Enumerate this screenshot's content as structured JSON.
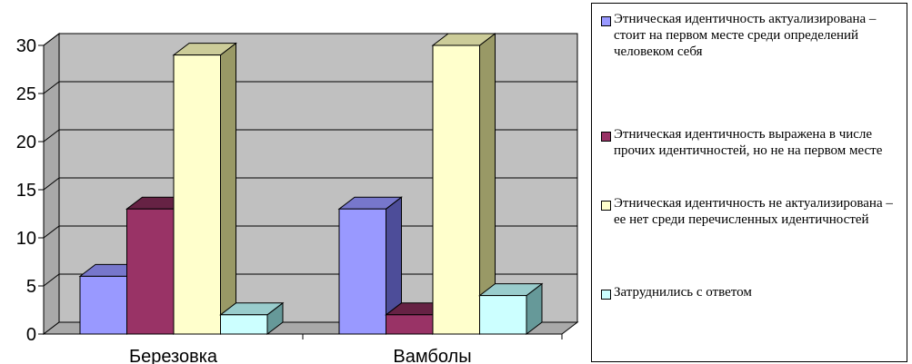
{
  "chart_data": {
    "type": "bar",
    "categories": [
      "Березовка",
      "Вамболы"
    ],
    "series": [
      {
        "name": "Этническая идентичность актуализирована – стоит на первом месте среди определений человеком себя",
        "values": [
          6,
          13
        ]
      },
      {
        "name": "Этническая идентичность выражена в числе прочих идентичностей, но не на первом месте",
        "values": [
          13,
          2
        ]
      },
      {
        "name": "Этническая идентичность не актуализирована – ее нет среди перечисленных идентичностей",
        "values": [
          29,
          30
        ]
      },
      {
        "name": "Затруднились с ответом",
        "values": [
          2,
          4
        ]
      }
    ],
    "y_ticks": [
      "0",
      "5",
      "10",
      "15",
      "20",
      "25",
      "30"
    ],
    "ylim": [
      0,
      30
    ],
    "grid": true,
    "legend_position": "right",
    "colors": [
      "#9999ff",
      "#993366",
      "#ffffcc",
      "#ccffff"
    ],
    "side_colors": [
      "#4d4d99",
      "#4d1a33",
      "#999966",
      "#669999"
    ],
    "top_colors": [
      "#7777cc",
      "#662244",
      "#cccc99",
      "#99cccc"
    ],
    "wall_color": "#c0c0c0"
  }
}
